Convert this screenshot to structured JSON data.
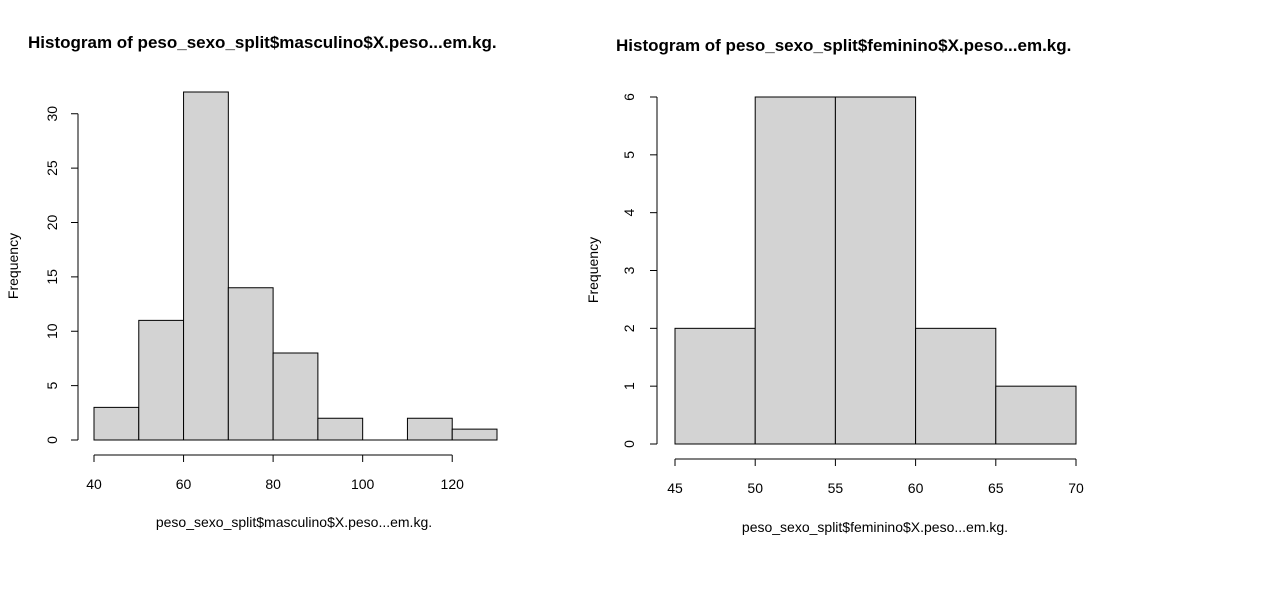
{
  "chart_data": [
    {
      "type": "bar",
      "title": "Histogram of peso_sexo_split$masculino$X.peso...em.kg.",
      "xlabel": "peso_sexo_split$masculino$X.peso...em.kg.",
      "ylabel": "Frequency",
      "bins": [
        {
          "from": 40,
          "to": 50,
          "count": 3
        },
        {
          "from": 50,
          "to": 60,
          "count": 11
        },
        {
          "from": 60,
          "to": 70,
          "count": 32
        },
        {
          "from": 70,
          "to": 80,
          "count": 14
        },
        {
          "from": 80,
          "to": 90,
          "count": 8
        },
        {
          "from": 90,
          "to": 100,
          "count": 2
        },
        {
          "from": 100,
          "to": 110,
          "count": 0
        },
        {
          "from": 110,
          "to": 120,
          "count": 2
        },
        {
          "from": 120,
          "to": 130,
          "count": 1
        }
      ],
      "xticks": [
        40,
        60,
        80,
        100,
        120
      ],
      "yticks": [
        0,
        5,
        10,
        15,
        20,
        25,
        30
      ],
      "xlim": [
        40,
        130
      ],
      "ylim": [
        0,
        32
      ],
      "bar_color": "#d3d3d3",
      "edge_color": "#000000"
    },
    {
      "type": "bar",
      "title": "Histogram of peso_sexo_split$feminino$X.peso...em.kg.",
      "xlabel": "peso_sexo_split$feminino$X.peso...em.kg.",
      "ylabel": "Frequency",
      "bins": [
        {
          "from": 45,
          "to": 50,
          "count": 2
        },
        {
          "from": 50,
          "to": 55,
          "count": 6
        },
        {
          "from": 55,
          "to": 60,
          "count": 6
        },
        {
          "from": 60,
          "to": 65,
          "count": 2
        },
        {
          "from": 65,
          "to": 70,
          "count": 1
        }
      ],
      "xticks": [
        45,
        50,
        55,
        60,
        65,
        70
      ],
      "yticks": [
        0,
        1,
        2,
        3,
        4,
        5,
        6
      ],
      "xlim": [
        45,
        70
      ],
      "ylim": [
        0,
        6
      ],
      "bar_color": "#d3d3d3",
      "edge_color": "#000000"
    }
  ]
}
